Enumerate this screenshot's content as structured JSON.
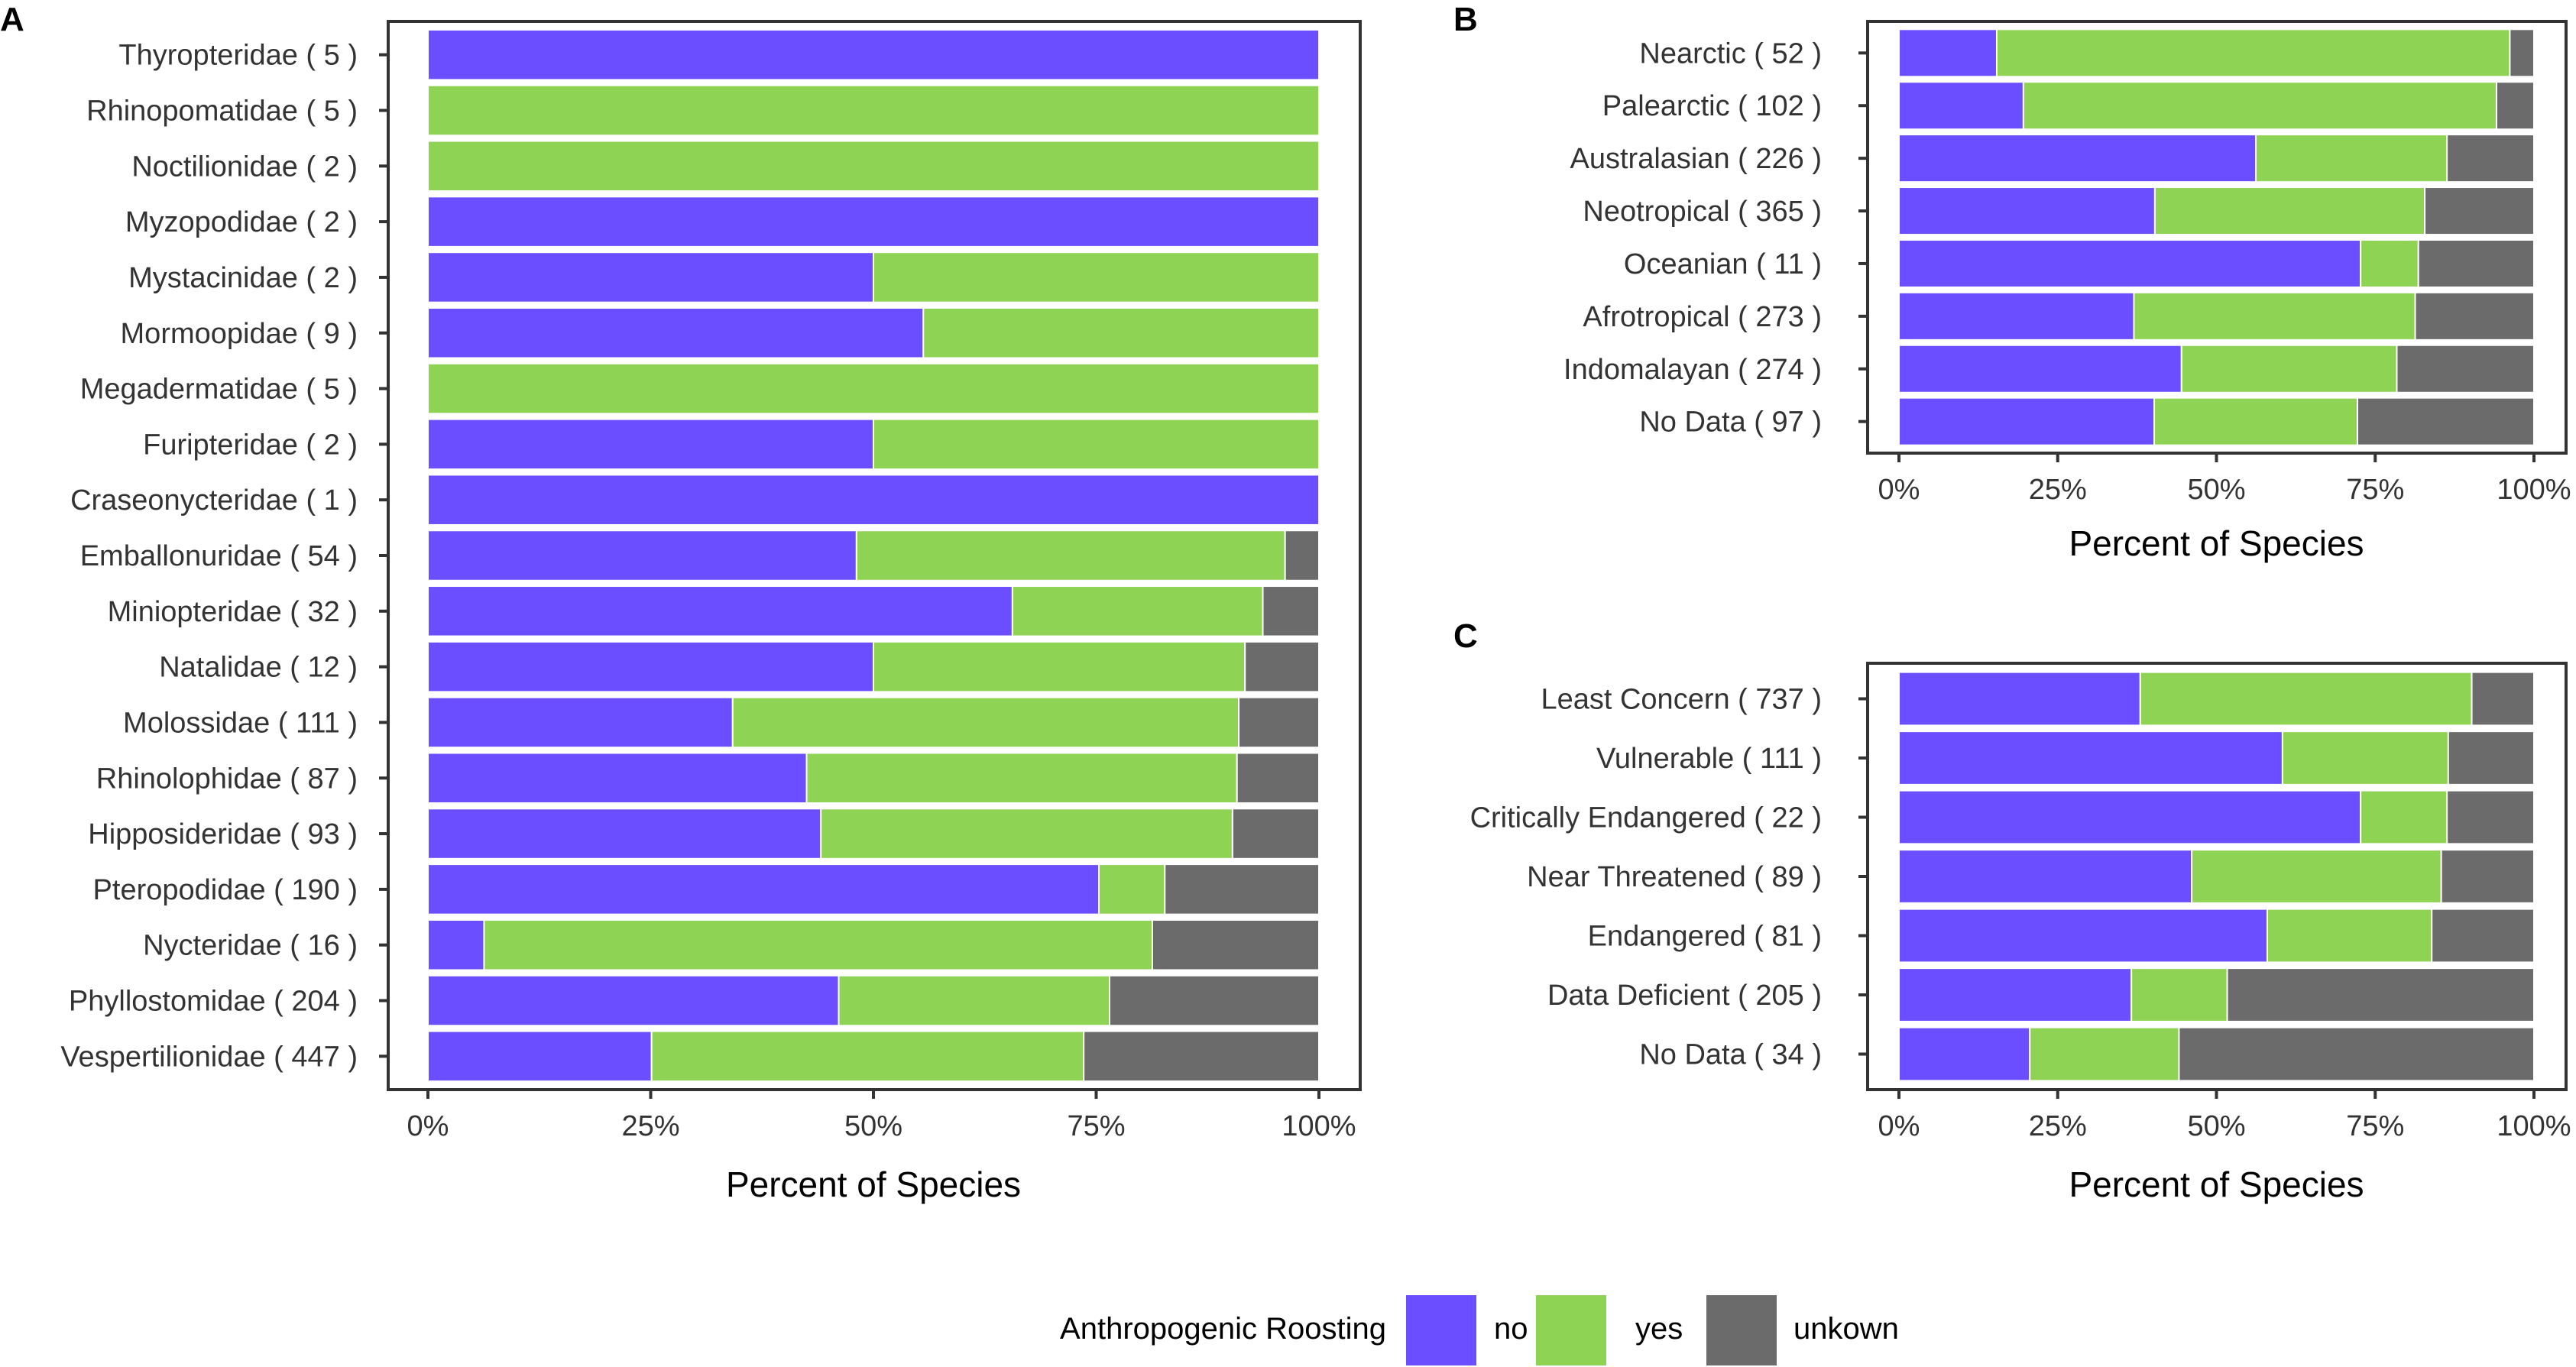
{
  "colors": {
    "no": "#6b4eff",
    "yes": "#8ed354",
    "unkown": "#6b6b6b"
  },
  "legend": {
    "title": "Anthropogenic Roosting",
    "items": [
      {
        "key": "no",
        "label": "no"
      },
      {
        "key": "yes",
        "label": "yes"
      },
      {
        "key": "unkown",
        "label": "unkown"
      }
    ]
  },
  "chart_data": [
    {
      "panel": "A",
      "type": "bar",
      "orientation": "horizontal",
      "stacked": true,
      "xlabel": "Percent of Species",
      "xlim": [
        0,
        100
      ],
      "xticks": [
        "0%",
        "25%",
        "50%",
        "75%",
        "100%"
      ],
      "categories": [
        "Thyropteridae ( 5 )",
        "Rhinopomatidae ( 5 )",
        "Noctilionidae ( 2 )",
        "Myzopodidae ( 2 )",
        "Mystacinidae ( 2 )",
        "Mormoopidae ( 9 )",
        "Megadermatidae ( 5 )",
        "Furipteridae ( 2 )",
        "Craseonycteridae ( 1 )",
        "Emballonuridae ( 54 )",
        "Miniopteridae ( 32 )",
        "Natalidae ( 12 )",
        "Molossidae ( 111 )",
        "Rhinolophidae ( 87 )",
        "Hipposideridae ( 93 )",
        "Pteropodidae ( 190 )",
        "Nycteridae ( 16 )",
        "Phyllostomidae ( 204 )",
        "Vespertilionidae ( 447 )"
      ],
      "series": [
        {
          "name": "no",
          "values": [
            100,
            0,
            0,
            100,
            50,
            55.6,
            0,
            50,
            100,
            48.1,
            65.6,
            50,
            34.2,
            42.5,
            44.1,
            75.3,
            6.3,
            46.1,
            25.1
          ]
        },
        {
          "name": "yes",
          "values": [
            0,
            100,
            100,
            0,
            50,
            44.4,
            100,
            50,
            0,
            48.1,
            28.1,
            41.7,
            56.8,
            48.3,
            46.2,
            7.4,
            75.0,
            30.4,
            48.5
          ]
        },
        {
          "name": "unkown",
          "values": [
            0,
            0,
            0,
            0,
            0,
            0,
            0,
            0,
            0,
            3.8,
            6.3,
            8.3,
            9.0,
            9.2,
            9.7,
            17.3,
            18.7,
            23.5,
            26.4
          ]
        }
      ]
    },
    {
      "panel": "B",
      "type": "bar",
      "orientation": "horizontal",
      "stacked": true,
      "xlabel": "Percent of Species",
      "xlim": [
        0,
        100
      ],
      "xticks": [
        "0%",
        "25%",
        "50%",
        "75%",
        "100%"
      ],
      "categories": [
        "Nearctic ( 52 )",
        "Palearctic ( 102 )",
        "Australasian ( 226 )",
        "Neotropical ( 365 )",
        "Oceanian ( 11 )",
        "Afrotropical ( 273 )",
        "Indomalayan ( 274 )",
        "No Data ( 97 )"
      ],
      "series": [
        {
          "name": "no",
          "values": [
            15.4,
            19.6,
            56.2,
            40.3,
            72.7,
            37.0,
            44.5,
            40.2
          ]
        },
        {
          "name": "yes",
          "values": [
            80.8,
            74.5,
            30.1,
            42.5,
            9.1,
            44.3,
            33.9,
            32.0
          ]
        },
        {
          "name": "unkown",
          "values": [
            3.8,
            5.9,
            13.7,
            17.2,
            18.2,
            18.7,
            21.6,
            27.8
          ]
        }
      ]
    },
    {
      "panel": "C",
      "type": "bar",
      "orientation": "horizontal",
      "stacked": true,
      "xlabel": "Percent of Species",
      "xlim": [
        0,
        100
      ],
      "xticks": [
        "0%",
        "25%",
        "50%",
        "75%",
        "100%"
      ],
      "categories": [
        "Least Concern ( 737 )",
        "Vulnerable ( 111 )",
        "Critically Endangered ( 22 )",
        "Near Threatened ( 89 )",
        "Endangered ( 81 )",
        "Data Deficient ( 205 )",
        "No Data ( 34 )"
      ],
      "series": [
        {
          "name": "no",
          "values": [
            38.0,
            60.4,
            72.7,
            46.1,
            58.0,
            36.6,
            20.6
          ]
        },
        {
          "name": "yes",
          "values": [
            52.2,
            26.1,
            13.6,
            39.3,
            25.9,
            15.1,
            23.5
          ]
        },
        {
          "name": "unkown",
          "values": [
            9.8,
            13.5,
            13.7,
            14.6,
            16.1,
            48.3,
            55.9
          ]
        }
      ]
    }
  ]
}
